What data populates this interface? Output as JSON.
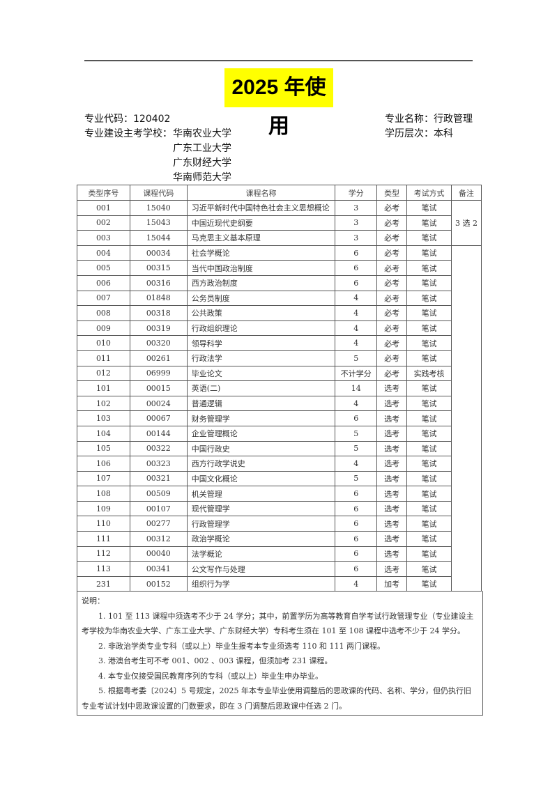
{
  "title": "2025 年使用",
  "header": {
    "major_code_label": "专业代码：",
    "major_code": "120402",
    "major_name_label": "专业名称：",
    "major_name": "行政管理",
    "schools_label": "专业建设主考学校：",
    "schools": [
      "华南农业大学",
      "广东工业大学",
      "广东财经大学",
      "华南师范大学"
    ],
    "level_label": "学历层次：",
    "level": "本科"
  },
  "table": {
    "columns": [
      "类型序号",
      "课程代码",
      "课程名称",
      "学分",
      "类型",
      "考试方式",
      "备注"
    ],
    "remark_group": "3 选 2",
    "rows": [
      [
        "001",
        "15040",
        "习近平新时代中国特色社会主义思想概论",
        "3",
        "必考",
        "笔试"
      ],
      [
        "002",
        "15043",
        "中国近现代史纲要",
        "3",
        "必考",
        "笔试"
      ],
      [
        "003",
        "15044",
        "马克思主义基本原理",
        "3",
        "必考",
        "笔试"
      ],
      [
        "004",
        "00034",
        "社会学概论",
        "6",
        "必考",
        "笔试"
      ],
      [
        "005",
        "00315",
        "当代中国政治制度",
        "6",
        "必考",
        "笔试"
      ],
      [
        "006",
        "00316",
        "西方政治制度",
        "6",
        "必考",
        "笔试"
      ],
      [
        "007",
        "01848",
        "公务员制度",
        "4",
        "必考",
        "笔试"
      ],
      [
        "008",
        "00318",
        "公共政策",
        "4",
        "必考",
        "笔试"
      ],
      [
        "009",
        "00319",
        "行政组织理论",
        "4",
        "必考",
        "笔试"
      ],
      [
        "010",
        "00320",
        "领导科学",
        "4",
        "必考",
        "笔试"
      ],
      [
        "011",
        "00261",
        "行政法学",
        "5",
        "必考",
        "笔试"
      ],
      [
        "012",
        "06999",
        "毕业论文",
        "不计学分",
        "必考",
        "实践考核"
      ],
      [
        "101",
        "00015",
        "英语(二)",
        "14",
        "选考",
        "笔试"
      ],
      [
        "102",
        "00024",
        "普通逻辑",
        "4",
        "选考",
        "笔试"
      ],
      [
        "103",
        "00067",
        "财务管理学",
        "6",
        "选考",
        "笔试"
      ],
      [
        "104",
        "00144",
        "企业管理概论",
        "5",
        "选考",
        "笔试"
      ],
      [
        "105",
        "00322",
        "中国行政史",
        "5",
        "选考",
        "笔试"
      ],
      [
        "106",
        "00323",
        "西方行政学说史",
        "4",
        "选考",
        "笔试"
      ],
      [
        "107",
        "00321",
        "中国文化概论",
        "5",
        "选考",
        "笔试"
      ],
      [
        "108",
        "00509",
        "机关管理",
        "6",
        "选考",
        "笔试"
      ],
      [
        "109",
        "00107",
        "现代管理学",
        "6",
        "选考",
        "笔试"
      ],
      [
        "110",
        "00277",
        "行政管理学",
        "6",
        "选考",
        "笔试"
      ],
      [
        "111",
        "00312",
        "政治学概论",
        "6",
        "选考",
        "笔试"
      ],
      [
        "112",
        "00040",
        "法学概论",
        "6",
        "选考",
        "笔试"
      ],
      [
        "113",
        "00341",
        "公文写作与处理",
        "6",
        "选考",
        "笔试"
      ],
      [
        "231",
        "00152",
        "组织行为学",
        "4",
        "加考",
        "笔试"
      ]
    ]
  },
  "notes": {
    "heading": "说明：",
    "items": [
      "1. 101 至 113 课程中须选考不少于 24 学分；其中，前置学历为高等教育自学考试行政管理专业（专业建设主考学校为华南农业大学、广东工业大学、广东财经大学）专科考生须在 101 至 108 课程中选考不少于 24 学分。",
      "2. 非政治学类专业专科（或以上）毕业生报考本专业须选考 110 和 111 两门课程。",
      "3. 港澳台考生可不考 001、002 、003 课程，但须加考 231 课程。",
      "4. 本专业仅接受国民教育序列的专科（或以上）毕业生申办毕业。",
      "5. 根据粤考委〔2024〕5 号规定，2025 年本专业毕业使用调整后的思政课的代码、名称、学分，但仍执行旧专业考试计划中思政课设置的门数要求，即在 3 门调整后思政课中任选 2 门。"
    ]
  }
}
